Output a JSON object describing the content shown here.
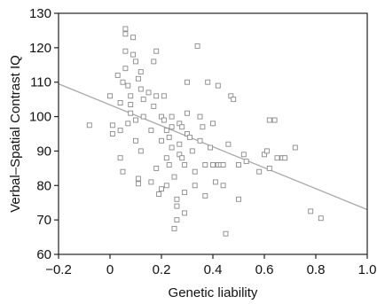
{
  "chart_data": {
    "type": "scatter",
    "title": "",
    "xlabel": "Genetic liability",
    "ylabel": "Verbal–Spatial Contrast IQ",
    "xlim": [
      -0.2,
      1.0
    ],
    "ylim": [
      60,
      130
    ],
    "xticks": [
      -0.2,
      0,
      0.2,
      0.4,
      0.6,
      0.8,
      1.0
    ],
    "xtick_labels": [
      "−0.2",
      "0",
      "0.2",
      "0.4",
      "0.6",
      "0.8",
      "1.0"
    ],
    "yticks": [
      60,
      70,
      80,
      90,
      100,
      110,
      120,
      130
    ],
    "ytick_labels": [
      "60",
      "70",
      "80",
      "90",
      "100",
      "110",
      "120",
      "130"
    ],
    "grid": false,
    "legend": false,
    "marker": "open-square",
    "fit_line": {
      "x": [
        -0.2,
        1.0
      ],
      "y": [
        109.5,
        73
      ]
    },
    "points": [
      {
        "x": -0.08,
        "y": 97.5
      },
      {
        "x": 0.0,
        "y": 106
      },
      {
        "x": 0.01,
        "y": 97.5
      },
      {
        "x": 0.01,
        "y": 95
      },
      {
        "x": 0.03,
        "y": 112
      },
      {
        "x": 0.04,
        "y": 96
      },
      {
        "x": 0.04,
        "y": 104
      },
      {
        "x": 0.04,
        "y": 88
      },
      {
        "x": 0.05,
        "y": 84
      },
      {
        "x": 0.05,
        "y": 110
      },
      {
        "x": 0.06,
        "y": 125.5
      },
      {
        "x": 0.06,
        "y": 124
      },
      {
        "x": 0.06,
        "y": 119
      },
      {
        "x": 0.06,
        "y": 114
      },
      {
        "x": 0.07,
        "y": 109
      },
      {
        "x": 0.07,
        "y": 98
      },
      {
        "x": 0.08,
        "y": 106
      },
      {
        "x": 0.08,
        "y": 103.5
      },
      {
        "x": 0.08,
        "y": 101
      },
      {
        "x": 0.09,
        "y": 123
      },
      {
        "x": 0.09,
        "y": 118
      },
      {
        "x": 0.1,
        "y": 116
      },
      {
        "x": 0.1,
        "y": 99
      },
      {
        "x": 0.1,
        "y": 93
      },
      {
        "x": 0.11,
        "y": 111
      },
      {
        "x": 0.11,
        "y": 82
      },
      {
        "x": 0.11,
        "y": 80.5
      },
      {
        "x": 0.12,
        "y": 113
      },
      {
        "x": 0.12,
        "y": 108
      },
      {
        "x": 0.12,
        "y": 90
      },
      {
        "x": 0.13,
        "y": 105
      },
      {
        "x": 0.13,
        "y": 100
      },
      {
        "x": 0.15,
        "y": 107
      },
      {
        "x": 0.16,
        "y": 96
      },
      {
        "x": 0.16,
        "y": 81
      },
      {
        "x": 0.17,
        "y": 116
      },
      {
        "x": 0.17,
        "y": 103
      },
      {
        "x": 0.18,
        "y": 106
      },
      {
        "x": 0.18,
        "y": 85
      },
      {
        "x": 0.18,
        "y": 119
      },
      {
        "x": 0.19,
        "y": 77.5
      },
      {
        "x": 0.2,
        "y": 79
      },
      {
        "x": 0.2,
        "y": 100
      },
      {
        "x": 0.2,
        "y": 93
      },
      {
        "x": 0.21,
        "y": 106
      },
      {
        "x": 0.21,
        "y": 99
      },
      {
        "x": 0.22,
        "y": 96
      },
      {
        "x": 0.22,
        "y": 88
      },
      {
        "x": 0.22,
        "y": 80
      },
      {
        "x": 0.23,
        "y": 86
      },
      {
        "x": 0.23,
        "y": 94
      },
      {
        "x": 0.24,
        "y": 100
      },
      {
        "x": 0.24,
        "y": 97
      },
      {
        "x": 0.24,
        "y": 91
      },
      {
        "x": 0.25,
        "y": 82.5
      },
      {
        "x": 0.25,
        "y": 67.5
      },
      {
        "x": 0.26,
        "y": 76
      },
      {
        "x": 0.26,
        "y": 74
      },
      {
        "x": 0.26,
        "y": 70
      },
      {
        "x": 0.27,
        "y": 98
      },
      {
        "x": 0.27,
        "y": 92
      },
      {
        "x": 0.27,
        "y": 89
      },
      {
        "x": 0.28,
        "y": 97
      },
      {
        "x": 0.28,
        "y": 88
      },
      {
        "x": 0.29,
        "y": 86
      },
      {
        "x": 0.29,
        "y": 78
      },
      {
        "x": 0.29,
        "y": 72
      },
      {
        "x": 0.3,
        "y": 110
      },
      {
        "x": 0.3,
        "y": 95
      },
      {
        "x": 0.3,
        "y": 101
      },
      {
        "x": 0.31,
        "y": 94
      },
      {
        "x": 0.32,
        "y": 90
      },
      {
        "x": 0.33,
        "y": 84
      },
      {
        "x": 0.33,
        "y": 80
      },
      {
        "x": 0.34,
        "y": 120.5
      },
      {
        "x": 0.35,
        "y": 100
      },
      {
        "x": 0.35,
        "y": 93
      },
      {
        "x": 0.36,
        "y": 97
      },
      {
        "x": 0.37,
        "y": 86
      },
      {
        "x": 0.37,
        "y": 77
      },
      {
        "x": 0.38,
        "y": 110
      },
      {
        "x": 0.39,
        "y": 91
      },
      {
        "x": 0.4,
        "y": 98
      },
      {
        "x": 0.4,
        "y": 86
      },
      {
        "x": 0.41,
        "y": 81
      },
      {
        "x": 0.42,
        "y": 109
      },
      {
        "x": 0.42,
        "y": 86
      },
      {
        "x": 0.43,
        "y": 86
      },
      {
        "x": 0.44,
        "y": 86
      },
      {
        "x": 0.44,
        "y": 80
      },
      {
        "x": 0.45,
        "y": 66
      },
      {
        "x": 0.46,
        "y": 92
      },
      {
        "x": 0.47,
        "y": 106
      },
      {
        "x": 0.48,
        "y": 105
      },
      {
        "x": 0.5,
        "y": 86
      },
      {
        "x": 0.5,
        "y": 76
      },
      {
        "x": 0.52,
        "y": 89
      },
      {
        "x": 0.53,
        "y": 87
      },
      {
        "x": 0.58,
        "y": 84
      },
      {
        "x": 0.6,
        "y": 89
      },
      {
        "x": 0.61,
        "y": 90
      },
      {
        "x": 0.62,
        "y": 85
      },
      {
        "x": 0.62,
        "y": 99
      },
      {
        "x": 0.64,
        "y": 99
      },
      {
        "x": 0.65,
        "y": 88
      },
      {
        "x": 0.67,
        "y": 88
      },
      {
        "x": 0.68,
        "y": 88
      },
      {
        "x": 0.72,
        "y": 91
      },
      {
        "x": 0.78,
        "y": 72.5
      },
      {
        "x": 0.82,
        "y": 70.5
      }
    ]
  }
}
